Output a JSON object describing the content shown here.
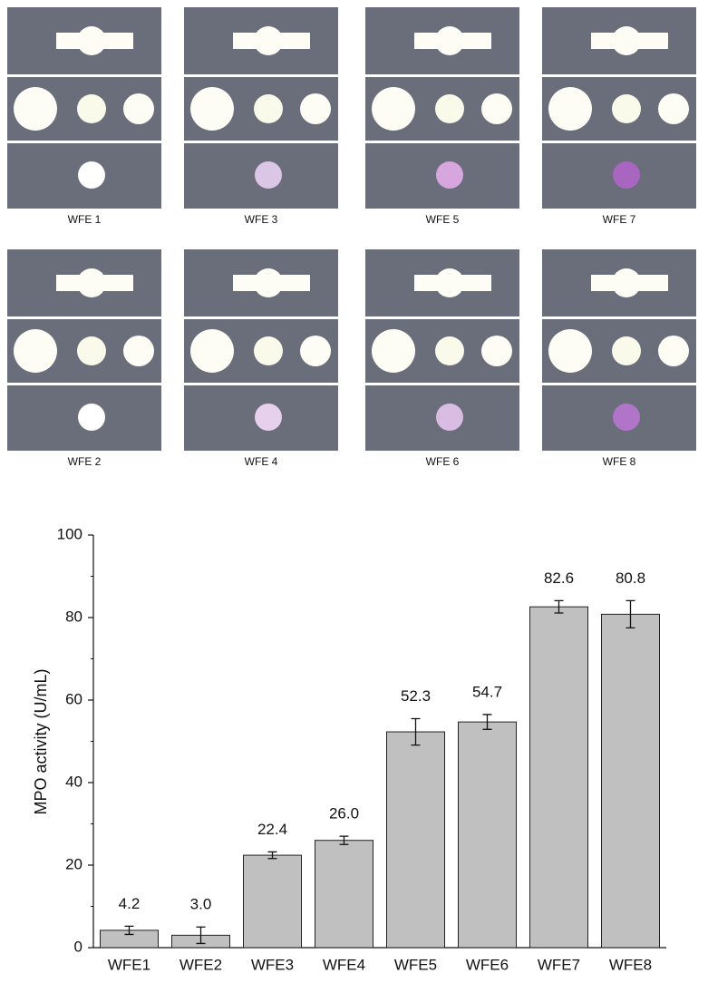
{
  "photos": {
    "labels": [
      "WFE 1",
      "WFE 3",
      "WFE 5",
      "WFE 7",
      "WFE 2",
      "WFE 4",
      "WFE 6",
      "WFE 8"
    ]
  },
  "chart_data": {
    "type": "bar",
    "y_label": "MPO activity (U/mL)",
    "categories": [
      "WFE1",
      "WFE2",
      "WFE3",
      "WFE4",
      "WFE5",
      "WFE6",
      "WFE7",
      "WFE8"
    ],
    "values": [
      4.2,
      3.0,
      22.4,
      26.0,
      52.3,
      54.7,
      82.6,
      80.8
    ],
    "value_labels": [
      "4.2",
      "3.0",
      "22.4",
      "26.0",
      "52.3",
      "54.7",
      "82.6",
      "80.8"
    ],
    "errors": [
      1.0,
      2.0,
      0.8,
      1.0,
      3.2,
      1.8,
      1.5,
      3.3
    ],
    "color": "#c0c0c0",
    "ylim": [
      0,
      100
    ],
    "yticks": [
      0,
      20,
      40,
      60,
      80,
      100
    ]
  }
}
